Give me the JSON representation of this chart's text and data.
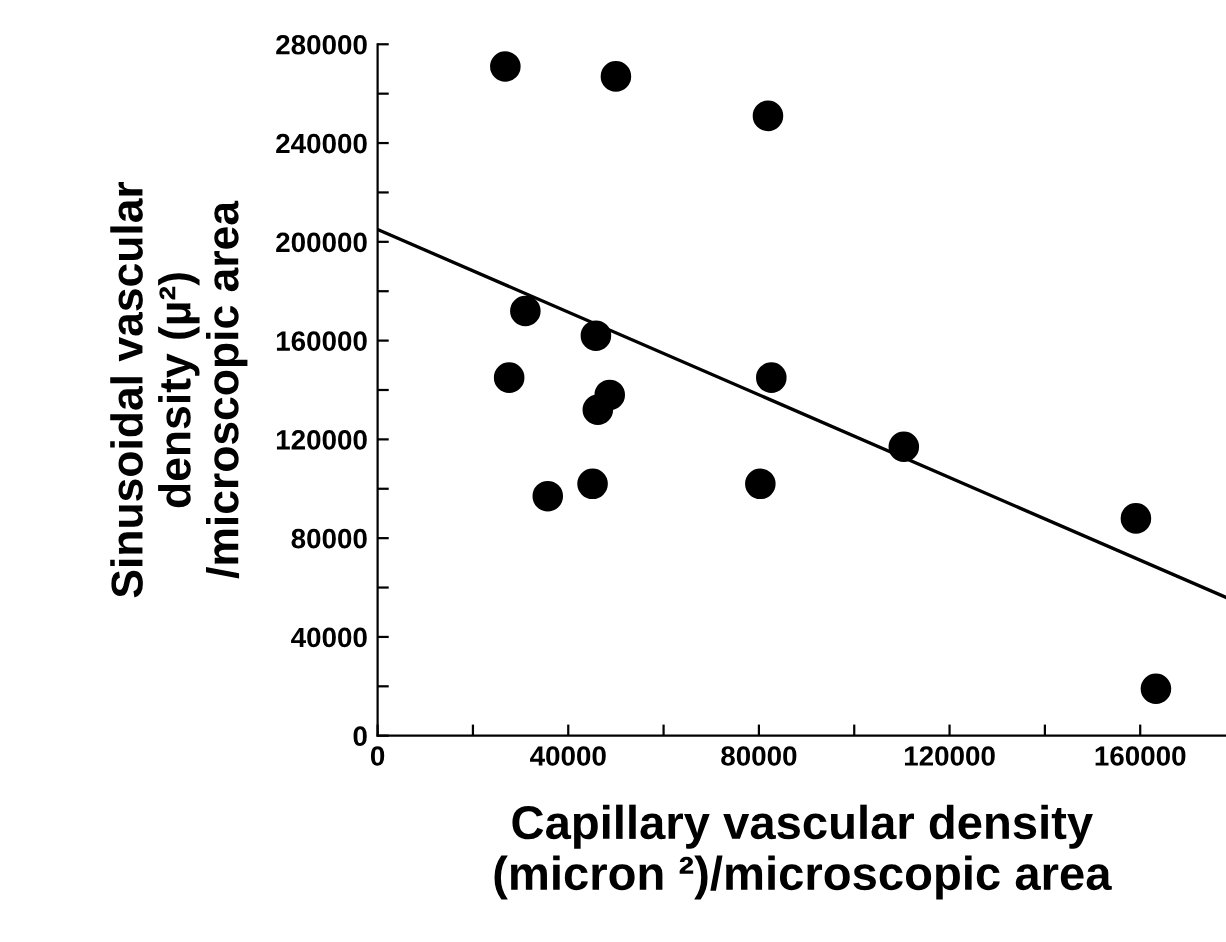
{
  "chart_data": {
    "type": "scatter",
    "xlabel": "Capillary vascular density\n(micron ²)/microscopic area",
    "ylabel": "Sinusoidal vascular\ndensity (µ²)\n/microscopic area",
    "x": [
      26800,
      50000,
      81900,
      31000,
      45800,
      27600,
      82600,
      48700,
      46200,
      35700,
      45100,
      80300,
      110400,
      159100,
      163300
    ],
    "series": [
      {
        "marker": "circle",
        "color": "#000000",
        "values": [
          271000,
          267000,
          251000,
          172000,
          162000,
          145000,
          145000,
          138000,
          132000,
          97000,
          102000,
          102000,
          117000,
          88000,
          19000
        ]
      },
      {
        "type": "line",
        "marker": "none",
        "color": "#000000",
        "x": [
          0,
          178000
        ],
        "values": [
          205000,
          56000
        ]
      }
    ],
    "xlim": [
      0,
      178000
    ],
    "ylim": [
      0,
      280000
    ],
    "xticks": [
      0,
      {
        "value": 20000,
        "label": null
      },
      40000,
      {
        "value": 60000,
        "label": null
      },
      80000,
      {
        "value": 100000,
        "label": null
      },
      120000,
      {
        "value": 140000,
        "label": null
      },
      160000
    ],
    "yticks": [
      0,
      {
        "value": 20000,
        "label": null
      },
      40000,
      {
        "value": 60000,
        "label": null
      },
      80000,
      {
        "value": 100000,
        "label": null
      },
      120000,
      {
        "value": 140000,
        "label": null
      },
      160000,
      {
        "value": 180000,
        "label": null
      },
      200000,
      {
        "value": 220000,
        "label": null
      },
      240000,
      {
        "value": 260000,
        "label": null
      },
      280000
    ],
    "grid": false,
    "legend": false
  }
}
